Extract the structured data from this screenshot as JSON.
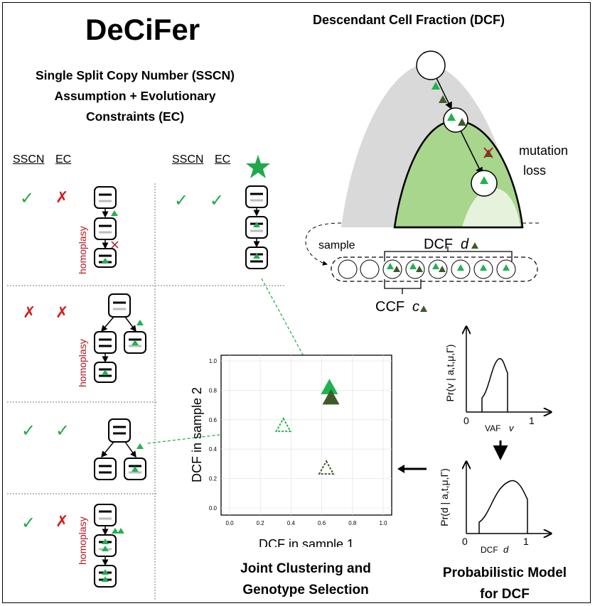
{
  "title": "DeCiFer",
  "subtitle_lines": [
    "Single Split Copy Number (SSCN)",
    "Assumption + Evolutionary",
    "Constraints (EC)"
  ],
  "headers": {
    "sscn": "SSCN",
    "ec": "EC"
  },
  "homoplasy_label": "homoplasy",
  "rows": [
    {
      "sscn": "✓",
      "ec": "✗"
    },
    {
      "sscn": "✗",
      "ec": "✗"
    },
    {
      "sscn": "✓",
      "ec": "✓"
    },
    {
      "sscn": "✓",
      "ec": "✗"
    },
    {
      "sscn": "✓",
      "ec": "✓"
    }
  ],
  "dcf_section": {
    "title": "Descendant Cell Fraction (DCF)",
    "mutation_loss": [
      "mutation",
      "loss"
    ],
    "sample": "sample",
    "dcf_label": "DCF",
    "dcf_var": "d",
    "ccf_label": "CCF",
    "ccf_var": "c"
  },
  "scatter": {
    "xlabel": "DCF in sample 1",
    "ylabel": "DCF in sample 2",
    "ticks": [
      "0.0",
      "0.2",
      "0.4",
      "0.6",
      "0.8",
      "1.0"
    ]
  },
  "chart_data": {
    "type": "scatter",
    "xlabel": "DCF in sample 1",
    "ylabel": "DCF in sample 2",
    "xlim": [
      0,
      1
    ],
    "ylim": [
      0,
      1
    ],
    "x_ticks": [
      0.0,
      0.2,
      0.4,
      0.6,
      0.8,
      1.0
    ],
    "y_ticks": [
      0.0,
      0.2,
      0.4,
      0.6,
      0.8,
      1.0
    ],
    "points": [
      {
        "x": 0.65,
        "y": 0.82,
        "style": "filled-light-green"
      },
      {
        "x": 0.66,
        "y": 0.75,
        "style": "filled-dark-green"
      },
      {
        "x": 0.35,
        "y": 0.56,
        "style": "dashed-light-green"
      },
      {
        "x": 0.63,
        "y": 0.27,
        "style": "dashed-dark-green"
      }
    ]
  },
  "joint_caption": [
    "Joint Clustering and",
    "Genotype Selection"
  ],
  "model": {
    "top_ylabel": "Pr(v | a,t,μ,Γ)",
    "top_xlabel": "VAF",
    "top_xvar": "v",
    "bottom_ylabel": "Pr(d | a,t,μ,Γ)",
    "bottom_xlabel": "DCF",
    "bottom_xvar": "d",
    "tick0": "0",
    "tick1": "1",
    "caption": [
      "Probabilistic Model",
      "for DCF"
    ]
  },
  "colors": {
    "light_green": "#1fb24f",
    "dark_green": "#3e5a2b",
    "red": "#d21d1d",
    "fill_green": "#a7d68c"
  }
}
